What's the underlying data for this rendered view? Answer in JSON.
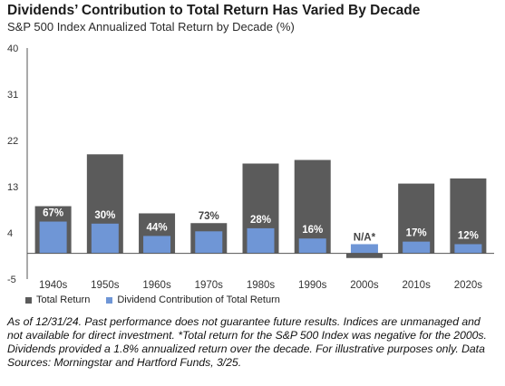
{
  "title": "Dividends’ Contribution to Total Return Has Varied By Decade",
  "subtitle": "S&P 500 Index Annualized Total Return by Decade (%)",
  "colors": {
    "total": "#5b5b5b",
    "dividend": "#6f96d6",
    "axis": "#555555"
  },
  "chart_data": {
    "type": "bar",
    "title": "Dividends’ Contribution to Total Return Has Varied By Decade",
    "subtitle": "S&P 500 Index Annualized Total Return by Decade (%)",
    "categories": [
      "1940s",
      "1950s",
      "1960s",
      "1970s",
      "1980s",
      "1990s",
      "2000s",
      "2010s",
      "2020s"
    ],
    "series": [
      {
        "name": "Total Return",
        "values": [
          9.2,
          19.3,
          7.8,
          5.9,
          17.5,
          18.2,
          -0.9,
          13.6,
          14.6
        ]
      },
      {
        "name": "Dividend Contribution of Total Return",
        "values": [
          6.2,
          5.8,
          3.4,
          4.3,
          4.9,
          2.9,
          1.8,
          2.3,
          1.8
        ]
      }
    ],
    "bar_labels": [
      "67%",
      "30%",
      "44%",
      "73%",
      "28%",
      "16%",
      "N/A*",
      "17%",
      "12%"
    ],
    "y_ticks": [
      -5,
      4,
      13,
      22,
      31,
      40
    ],
    "ylim": [
      -5,
      40
    ],
    "grid": false,
    "legend_position": "bottom-left"
  },
  "legend": {
    "total_label": "Total Return",
    "dividend_label": "Dividend Contribution of Total Return"
  },
  "footnote": "As of 12/31/24. Past performance does not guarantee future results. Indices are unmanaged and not available for direct investment. *Total return for the S&P 500 Index was negative for the 2000s. Dividends provided a 1.8% annualized return over the decade. For illustrative purposes only. Data Sources: Morningstar and Hartford Funds, 3/25."
}
